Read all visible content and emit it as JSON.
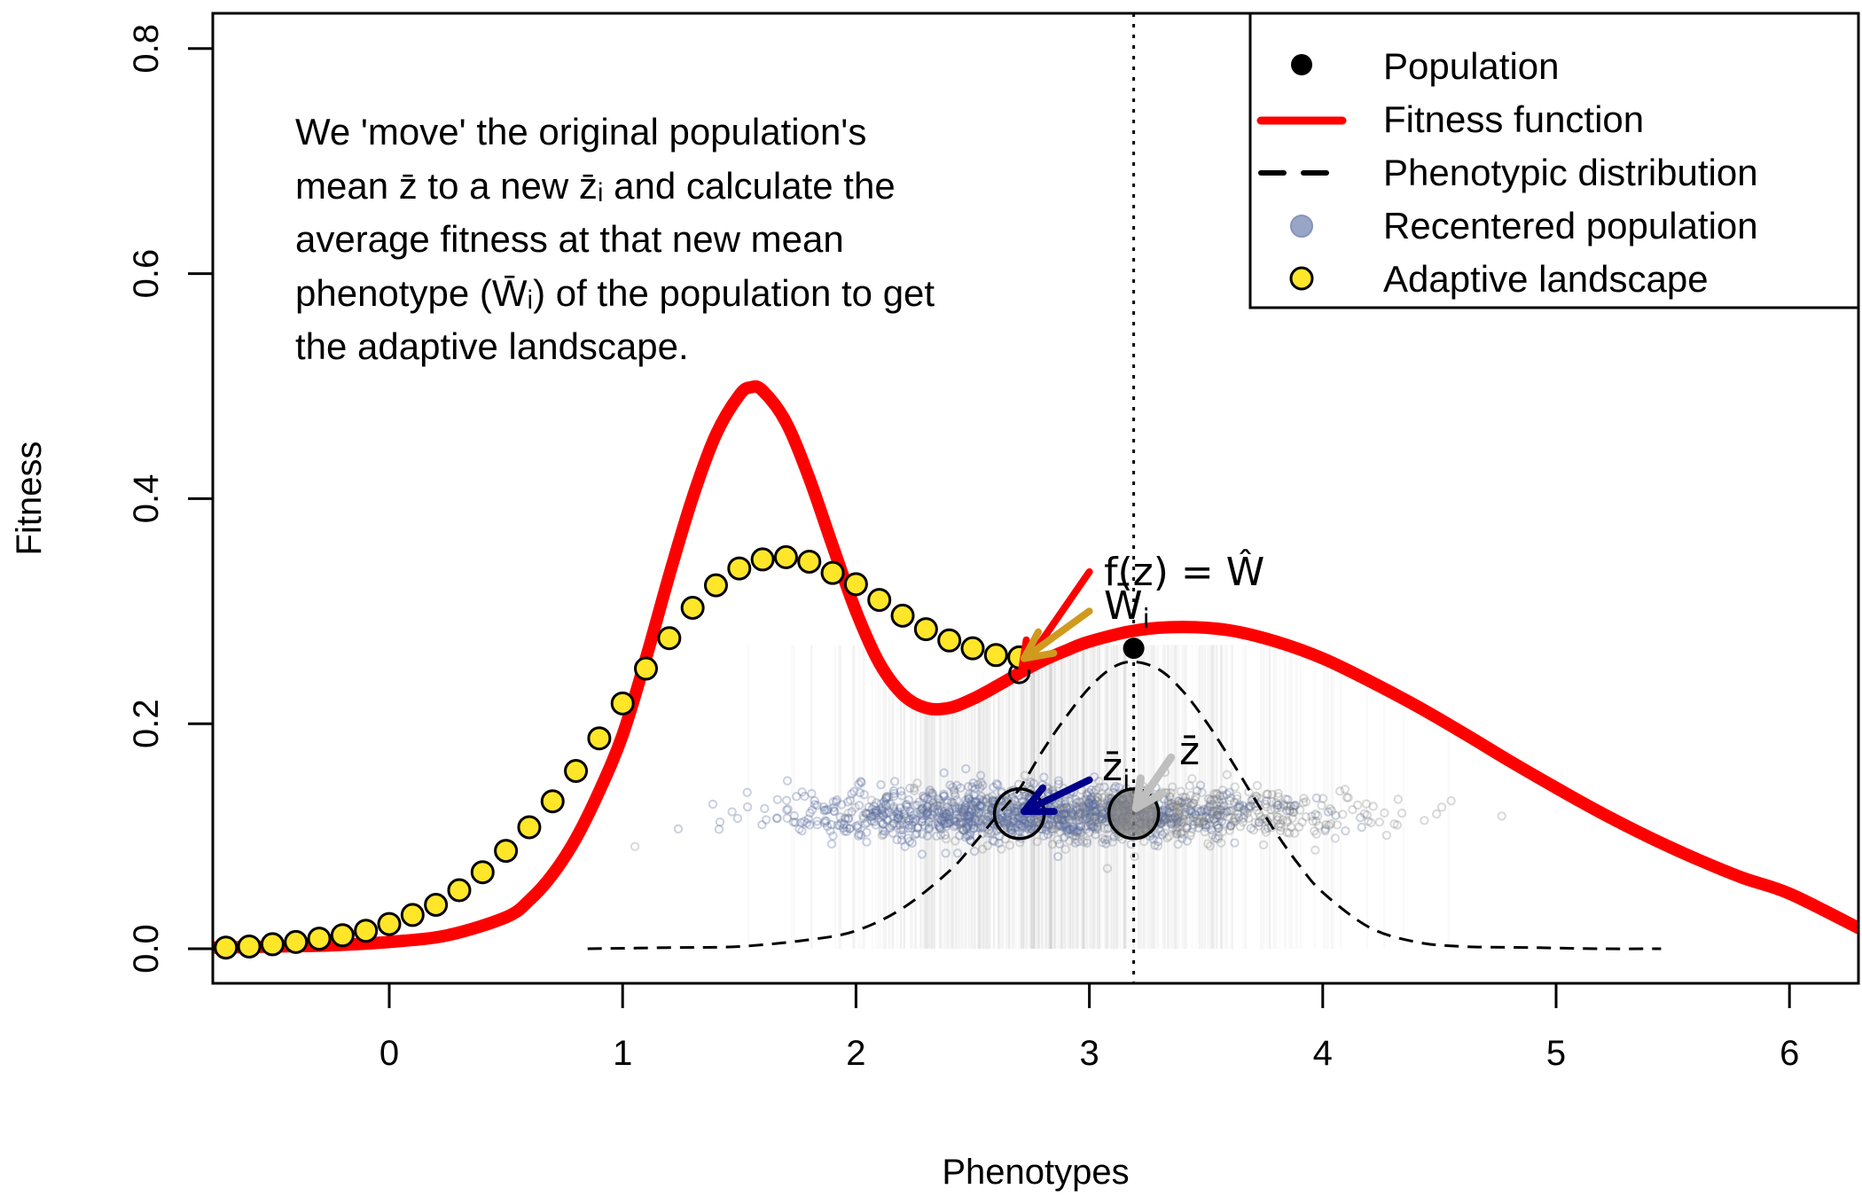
{
  "chart_data": {
    "type": "line",
    "title": "",
    "xlabel": "Phenotypes",
    "ylabel": "Fitness",
    "xlim": [
      -0.756,
      6.3
    ],
    "ylim": [
      -0.032,
      0.83
    ],
    "grid": false,
    "x_ticks": [
      0,
      1,
      2,
      3,
      4,
      5,
      6
    ],
    "x_tick_labels": [
      "0",
      "1",
      "2",
      "3",
      "4",
      "5",
      "6"
    ],
    "y_ticks": [
      0.0,
      0.2,
      0.4,
      0.6,
      0.8
    ],
    "y_tick_labels": [
      "0.0",
      "0.2",
      "0.4",
      "0.6",
      "0.8"
    ],
    "legend": {
      "position": "top-right",
      "entries": [
        {
          "label": "Population",
          "marker": "filled-circle",
          "color": "#000000"
        },
        {
          "label": "Fitness function",
          "marker": "thick-line",
          "color": "#ff0000"
        },
        {
          "label": "Phenotypic distribution",
          "marker": "dashed-line",
          "color": "#000000"
        },
        {
          "label": "Recentered population",
          "marker": "filled-circle",
          "color": "#8f9cc2"
        },
        {
          "label": "Adaptive landscape",
          "marker": "outlined-circle",
          "color": "#ffe629"
        }
      ]
    },
    "series": [
      {
        "name": "Fitness function",
        "style": "line",
        "color": "#ff0000",
        "x": [
          -0.75,
          -0.5,
          -0.25,
          0,
          0.25,
          0.5,
          0.6,
          0.7,
          0.8,
          0.9,
          1.0,
          1.1,
          1.2,
          1.3,
          1.4,
          1.5,
          1.55,
          1.6,
          1.7,
          1.8,
          1.9,
          2.0,
          2.1,
          2.2,
          2.3,
          2.4,
          2.5,
          2.6,
          2.7,
          2.8,
          2.9,
          3.0,
          3.2,
          3.4,
          3.6,
          3.8,
          4.0,
          4.2,
          4.4,
          4.6,
          4.8,
          5.0,
          5.2,
          5.4,
          5.6,
          5.8,
          6.0,
          6.3
        ],
        "y": [
          0.001,
          0.002,
          0.003,
          0.006,
          0.012,
          0.028,
          0.043,
          0.066,
          0.098,
          0.14,
          0.19,
          0.258,
          0.332,
          0.401,
          0.457,
          0.492,
          0.499,
          0.496,
          0.468,
          0.418,
          0.358,
          0.3,
          0.254,
          0.226,
          0.214,
          0.214,
          0.222,
          0.233,
          0.245,
          0.256,
          0.265,
          0.273,
          0.283,
          0.286,
          0.283,
          0.273,
          0.258,
          0.238,
          0.216,
          0.192,
          0.167,
          0.143,
          0.12,
          0.099,
          0.08,
          0.063,
          0.049,
          0.018
        ]
      },
      {
        "name": "Phenotypic distribution",
        "style": "dashed",
        "color": "#000000",
        "x": [
          0.85,
          1.2,
          1.5,
          1.8,
          2.0,
          2.2,
          2.4,
          2.5,
          2.6,
          2.7,
          2.8,
          2.9,
          3.0,
          3.1,
          3.19,
          3.3,
          3.4,
          3.5,
          3.6,
          3.7,
          3.8,
          3.9,
          4.0,
          4.2,
          4.4,
          4.6,
          4.9,
          5.2,
          5.45
        ],
        "y": [
          0.0,
          0.001,
          0.002,
          0.008,
          0.016,
          0.036,
          0.069,
          0.092,
          0.117,
          0.142,
          0.176,
          0.206,
          0.232,
          0.25,
          0.255,
          0.248,
          0.229,
          0.202,
          0.17,
          0.136,
          0.103,
          0.074,
          0.05,
          0.019,
          0.006,
          0.002,
          0.001,
          0.0,
          0.0
        ]
      },
      {
        "name": "Adaptive landscape",
        "style": "points",
        "color": "#ffe629",
        "x": [
          -0.7,
          -0.6,
          -0.5,
          -0.4,
          -0.3,
          -0.2,
          -0.1,
          0.0,
          0.1,
          0.2,
          0.3,
          0.4,
          0.5,
          0.6,
          0.7,
          0.8,
          0.9,
          1.0,
          1.1,
          1.2,
          1.3,
          1.4,
          1.5,
          1.6,
          1.7,
          1.8,
          1.9,
          2.0,
          2.1,
          2.2,
          2.3,
          2.4,
          2.5,
          2.6,
          2.7
        ],
        "y": [
          0.001,
          0.002,
          0.004,
          0.006,
          0.009,
          0.012,
          0.016,
          0.022,
          0.03,
          0.039,
          0.052,
          0.068,
          0.087,
          0.108,
          0.131,
          0.158,
          0.187,
          0.218,
          0.249,
          0.276,
          0.303,
          0.323,
          0.338,
          0.346,
          0.348,
          0.344,
          0.334,
          0.324,
          0.31,
          0.296,
          0.284,
          0.274,
          0.267,
          0.261,
          0.259
        ]
      },
      {
        "name": "Population",
        "style": "point",
        "color": "#000000",
        "x": [
          3.19
        ],
        "y": [
          0.267
        ]
      }
    ],
    "population_cloud": {
      "original_mean": 3.19,
      "recentered_mean": 2.7,
      "y_level": 0.12,
      "original_color": "#808080",
      "recentered_color": "#5a6e9e"
    },
    "reference_line": {
      "type": "vertical",
      "style": "dotted",
      "x": 3.19
    },
    "markers": [
      {
        "name": "recentered-mean-circle",
        "x": 2.7,
        "y": 0.12,
        "fill": "none"
      },
      {
        "name": "original-mean-circle",
        "x": 3.19,
        "y": 0.12,
        "fill": "#808080"
      },
      {
        "name": "fitness-at-new-mean",
        "x": 2.7,
        "y": 0.245,
        "fill": "none"
      }
    ],
    "arrows": [
      {
        "name": "arrow-zbar-i",
        "from": [
          3.0,
          0.15
        ],
        "to": [
          2.72,
          0.122
        ],
        "color": "#00008b"
      },
      {
        "name": "arrow-zbar",
        "from": [
          3.35,
          0.17
        ],
        "to": [
          3.2,
          0.125
        ],
        "color": "#bfbfbf"
      },
      {
        "name": "arrow-f-z",
        "from": [
          3.0,
          0.335
        ],
        "to": [
          2.71,
          0.248
        ],
        "color": "#ff0000"
      },
      {
        "name": "arrow-wbar-i",
        "from": [
          3.0,
          0.3
        ],
        "to": [
          2.72,
          0.258
        ],
        "color": "#d09a1e"
      }
    ],
    "annotations": {
      "paragraph": [
        "We 'move' the original population's",
        "mean z̄ to a new z̄ᵢ and calculate the",
        "average fitness at that new mean",
        "phenotype (W̄ᵢ) of the population to get",
        "the adaptive landscape."
      ],
      "f_z_label": "f(z) = Ŵ",
      "w_bar_i_label": "W̄",
      "w_bar_i_sub": "i",
      "z_bar_i_label": "z̄",
      "z_bar_i_sub": "i",
      "z_bar_label": "z̄"
    }
  }
}
